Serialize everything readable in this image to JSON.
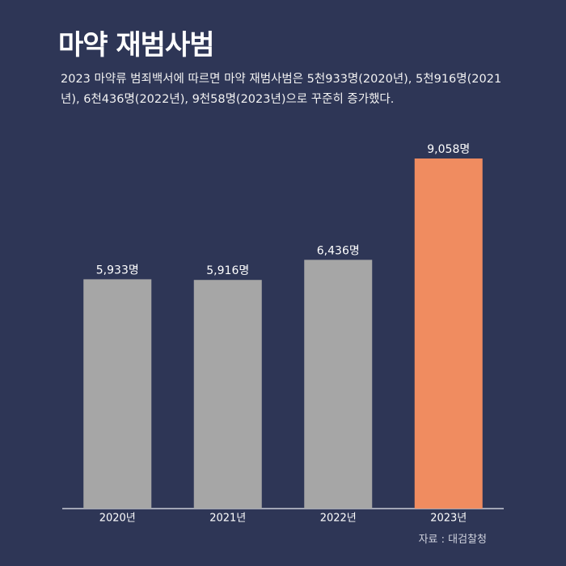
{
  "chart_data": {
    "type": "bar",
    "title": "마약 재범사범",
    "subtitle": "2023 마약류 범죄백서에 따르면 마약 재범사범은 5천933명(2020년), 5천916명(2021년), 6천436명(2022년), 9천58명(2023년)으로 꾸준히 증가했다.",
    "source": "자료 : 대검찰청",
    "categories": [
      "2020년",
      "2021년",
      "2022년",
      "2023년"
    ],
    "values": [
      5933,
      5916,
      6436,
      9058
    ],
    "value_labels": [
      "5,933명",
      "5,916명",
      "6,436명",
      "9,058명"
    ],
    "colors": [
      "#a6a6a6",
      "#a6a6a6",
      "#a6a6a6",
      "#f08c60"
    ],
    "ylim": [
      0,
      10000
    ]
  }
}
